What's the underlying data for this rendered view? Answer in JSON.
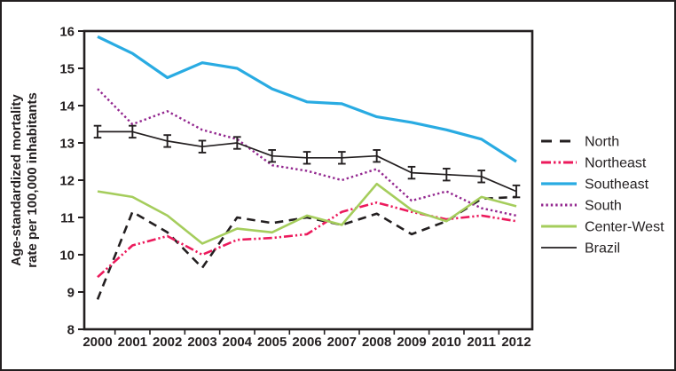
{
  "chart_data": {
    "type": "line",
    "title": "",
    "ylabel": "Age-standardized mortality rate per 100,000 inhabitants",
    "ylabel_lines": [
      "Age-standardized mortality",
      "rate per 100,000 inhabitants"
    ],
    "xlabel": "",
    "ylim": [
      8,
      16
    ],
    "yticks": [
      8,
      9,
      10,
      11,
      12,
      13,
      14,
      15,
      16
    ],
    "x": [
      2000,
      2001,
      2002,
      2003,
      2004,
      2005,
      2006,
      2007,
      2008,
      2009,
      2010,
      2011,
      2012
    ],
    "x_labels": [
      "2000",
      "2001",
      "2002",
      "2003",
      "2004",
      "2005",
      "2006",
      "2007",
      "2008",
      "2009",
      "2010",
      "2011",
      "2012"
    ],
    "grid": false,
    "legend_position": "right",
    "frame_color": "#231f20",
    "series": [
      {
        "name": "North",
        "color": "#231f20",
        "style": "dashed",
        "values": [
          8.8,
          11.15,
          10.6,
          9.65,
          11.0,
          10.85,
          11.0,
          10.8,
          11.1,
          10.55,
          10.9,
          11.5,
          11.55
        ]
      },
      {
        "name": "Northeast",
        "color": "#ec1a5c",
        "style": "dash-dot-dot",
        "values": [
          9.4,
          10.25,
          10.5,
          10.0,
          10.4,
          10.45,
          10.55,
          11.15,
          11.4,
          11.15,
          10.95,
          11.05,
          10.9
        ]
      },
      {
        "name": "Southeast",
        "color": "#29abe2",
        "style": "solid-thick",
        "values": [
          15.85,
          15.4,
          14.75,
          15.15,
          15.0,
          14.45,
          14.1,
          14.05,
          13.7,
          13.55,
          13.35,
          13.1,
          12.5
        ]
      },
      {
        "name": "South",
        "color": "#93278f",
        "style": "dotted",
        "values": [
          14.45,
          13.5,
          13.85,
          13.35,
          13.1,
          12.4,
          12.25,
          12.0,
          12.3,
          11.45,
          11.7,
          11.25,
          11.05
        ]
      },
      {
        "name": "Center-West",
        "color": "#a5cd5c",
        "style": "solid",
        "values": [
          11.7,
          11.55,
          11.05,
          10.3,
          10.7,
          10.6,
          11.05,
          10.8,
          11.9,
          11.2,
          10.9,
          11.55,
          11.3
        ]
      },
      {
        "name": "Brazil",
        "color": "#231f20",
        "style": "solid-thin",
        "error": 0.16,
        "values": [
          13.3,
          13.3,
          13.05,
          12.9,
          13.0,
          12.65,
          12.6,
          12.6,
          12.65,
          12.2,
          12.15,
          12.1,
          11.7
        ]
      }
    ]
  }
}
